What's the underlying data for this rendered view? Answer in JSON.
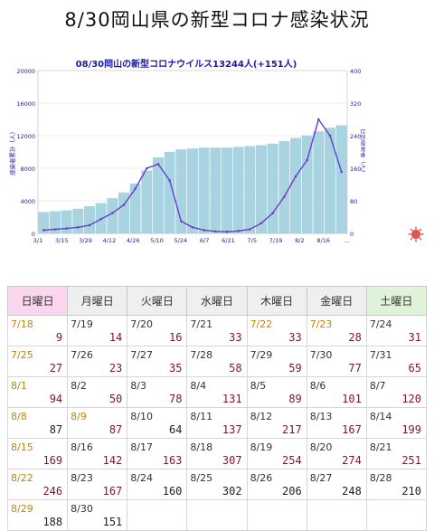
{
  "page_title": "8/30岡山県の新型コロナ感染状況",
  "chart_data": {
    "type": "bar+line",
    "title": "08/30岡山の新型コロナウイルス13244人(+151人)",
    "ylabel_left": "感染者累計（人）",
    "ylabel_right": "日別感染者（人）",
    "yticks_left": [
      "0",
      "4000",
      "8000",
      "12000",
      "16000",
      "20000"
    ],
    "yticks_right": [
      "0",
      "80",
      "160",
      "240",
      "320",
      "400"
    ],
    "ylim_left": [
      0,
      20000
    ],
    "ylim_right": [
      0,
      400
    ],
    "xticks": [
      "3/1",
      "3/15",
      "3/29",
      "4/12",
      "4/26",
      "5/10",
      "5/24",
      "6/7",
      "6/21",
      "7/5",
      "7/19",
      "8/2",
      "8/16",
      "..."
    ],
    "series": [
      {
        "name": "感染者累計",
        "kind": "bar",
        "axis": "left",
        "color": "#a8d4e2",
        "x": [
          "3/1",
          "3/8",
          "3/15",
          "3/22",
          "3/29",
          "4/5",
          "4/12",
          "4/19",
          "4/26",
          "5/3",
          "5/10",
          "5/17",
          "5/24",
          "5/31",
          "6/7",
          "6/14",
          "6/21",
          "6/28",
          "7/5",
          "7/12",
          "7/19",
          "7/26",
          "8/2",
          "8/9",
          "8/16",
          "8/23",
          "8/30"
        ],
        "values": [
          2600,
          2700,
          2800,
          3000,
          3300,
          3700,
          4300,
          5000,
          6100,
          7700,
          9300,
          10000,
          10300,
          10400,
          10500,
          10500,
          10500,
          10600,
          10700,
          10800,
          11000,
          11300,
          11700,
          12000,
          12500,
          12950,
          13244
        ]
      },
      {
        "name": "日別感染者",
        "kind": "line",
        "axis": "right",
        "color": "#6a3fc8",
        "x": [
          "3/1",
          "3/8",
          "3/15",
          "3/22",
          "3/29",
          "4/5",
          "4/12",
          "4/19",
          "4/26",
          "5/3",
          "5/10",
          "5/17",
          "5/24",
          "5/31",
          "6/7",
          "6/14",
          "6/21",
          "6/28",
          "7/5",
          "7/12",
          "7/19",
          "7/26",
          "8/2",
          "8/9",
          "8/16",
          "8/23",
          "8/30"
        ],
        "values": [
          8,
          10,
          12,
          15,
          20,
          35,
          50,
          70,
          110,
          160,
          170,
          130,
          30,
          15,
          8,
          5,
          4,
          6,
          10,
          25,
          50,
          90,
          140,
          180,
          280,
          240,
          151
        ]
      }
    ]
  },
  "calendar": {
    "headers": [
      "日曜日",
      "月曜日",
      "火曜日",
      "水曜日",
      "木曜日",
      "金曜日",
      "土曜日"
    ],
    "weeks": [
      [
        {
          "date": "7/18",
          "value": "9",
          "hol": true
        },
        {
          "date": "7/19",
          "value": "14"
        },
        {
          "date": "7/20",
          "value": "16"
        },
        {
          "date": "7/21",
          "value": "33"
        },
        {
          "date": "7/22",
          "value": "33",
          "hol": true
        },
        {
          "date": "7/23",
          "value": "28",
          "hol": true
        },
        {
          "date": "7/24",
          "value": "31"
        }
      ],
      [
        {
          "date": "7/25",
          "value": "27",
          "hol": true
        },
        {
          "date": "7/26",
          "value": "23"
        },
        {
          "date": "7/27",
          "value": "35"
        },
        {
          "date": "7/28",
          "value": "58"
        },
        {
          "date": "7/29",
          "value": "59"
        },
        {
          "date": "7/30",
          "value": "77"
        },
        {
          "date": "7/31",
          "value": "65"
        }
      ],
      [
        {
          "date": "8/1",
          "value": "94",
          "hol": true
        },
        {
          "date": "8/2",
          "value": "50"
        },
        {
          "date": "8/3",
          "value": "78"
        },
        {
          "date": "8/4",
          "value": "131"
        },
        {
          "date": "8/5",
          "value": "89"
        },
        {
          "date": "8/6",
          "value": "101"
        },
        {
          "date": "8/7",
          "value": "120"
        }
      ],
      [
        {
          "date": "8/8",
          "value": "87",
          "hol": true,
          "plain": true
        },
        {
          "date": "8/9",
          "value": "87",
          "hol": true
        },
        {
          "date": "8/10",
          "value": "64",
          "plain": true
        },
        {
          "date": "8/11",
          "value": "137"
        },
        {
          "date": "8/12",
          "value": "217"
        },
        {
          "date": "8/13",
          "value": "167"
        },
        {
          "date": "8/14",
          "value": "199"
        }
      ],
      [
        {
          "date": "8/15",
          "value": "169",
          "hol": true
        },
        {
          "date": "8/16",
          "value": "142"
        },
        {
          "date": "8/17",
          "value": "163"
        },
        {
          "date": "8/18",
          "value": "307"
        },
        {
          "date": "8/19",
          "value": "254"
        },
        {
          "date": "8/20",
          "value": "274"
        },
        {
          "date": "8/21",
          "value": "251"
        }
      ],
      [
        {
          "date": "8/22",
          "value": "246",
          "hol": true
        },
        {
          "date": "8/23",
          "value": "167"
        },
        {
          "date": "8/24",
          "value": "160",
          "plain": true
        },
        {
          "date": "8/25",
          "value": "302",
          "plain": true
        },
        {
          "date": "8/26",
          "value": "206",
          "plain": true
        },
        {
          "date": "8/27",
          "value": "248",
          "plain": true
        },
        {
          "date": "8/28",
          "value": "210",
          "plain": true
        }
      ],
      [
        {
          "date": "8/29",
          "value": "188",
          "hol": true,
          "plain": true
        },
        {
          "date": "8/30",
          "value": "151",
          "plain": true
        },
        {
          "date": "",
          "value": ""
        },
        {
          "date": "",
          "value": ""
        },
        {
          "date": "",
          "value": ""
        },
        {
          "date": "",
          "value": ""
        },
        {
          "date": "",
          "value": ""
        }
      ]
    ]
  },
  "icons": {
    "virus": "virus-icon"
  }
}
